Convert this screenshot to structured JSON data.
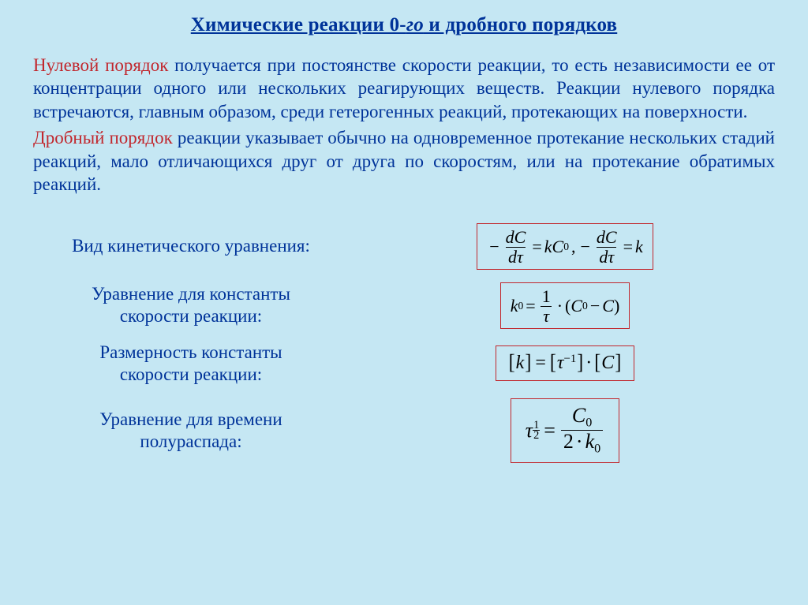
{
  "title_a": "Химические реакции 0-",
  "title_b": "го",
  "title_c": " и дробного порядков",
  "p1_hl": "Нулевой порядок",
  "p1_rest": " получается при постоянстве скорости реакции, то есть независимости ее от концентрации одного или нескольких реагирующих веществ. Реакции нулевого порядка встречаются, главным образом, среди гетерогенных реакций, протекающих на поверхности.",
  "p2_hl": "Дробный порядок",
  "p2_rest": " реакции указывает обычно на одновременное протекание нескольких стадий реакций, мало отличающихся друг от друга по скоростям, или на протекание обратимых реакций.",
  "label1": "Вид кинетического уравнения:",
  "label2a": "Уравнение для константы",
  "label2b": "скорости реакции:",
  "label3a": "Размерность константы",
  "label3b": "скорости реакции:",
  "label4a": "Уравнение для времени",
  "label4b": "полураспада:"
}
